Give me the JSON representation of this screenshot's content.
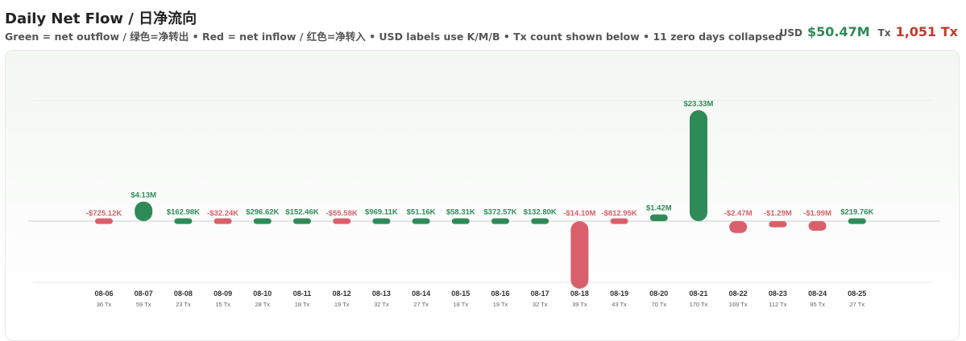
{
  "header": {
    "title": "Daily Net Flow / 日净流向",
    "subtitle": "Green = net outflow / 绿色=净转出 • Red = net inflow / 红色=净转入 • USD labels use K/M/B • Tx count shown below • 11 zero days collapsed",
    "usd_label": "USD",
    "usd_total": "$50.47M",
    "tx_label": "Tx",
    "tx_total": "1,051 Tx"
  },
  "colors": {
    "green": "#2e8b57",
    "red": "#d9606a",
    "gridline": "#e6eae6",
    "zeroline": "#c8d0c8"
  },
  "chart_data": {
    "type": "bar",
    "title": "Daily Net Flow / 日净流向",
    "categories": [
      "08-06",
      "08-07",
      "08-08",
      "08-09",
      "08-10",
      "08-11",
      "08-12",
      "08-13",
      "08-14",
      "08-15",
      "08-16",
      "08-17",
      "08-18",
      "08-19",
      "08-20",
      "08-21",
      "08-22",
      "08-23",
      "08-24",
      "08-25"
    ],
    "values": [
      -725120,
      4130000,
      162980,
      -32240,
      296620,
      152460,
      -55580,
      969110,
      51160,
      58310,
      372570,
      132800,
      -14100000,
      -812950,
      1420000,
      23330000,
      -2470000,
      -1290000,
      -1990000,
      219760
    ],
    "value_labels": [
      "-$725.12K",
      "$4.13M",
      "$162.98K",
      "-$32.24K",
      "$296.62K",
      "$152.46K",
      "-$55.58K",
      "$969.11K",
      "$51.16K",
      "$58.31K",
      "$372.57K",
      "$132.80K",
      "-$14.10M",
      "-$812.95K",
      "$1.42M",
      "$23.33M",
      "-$2.47M",
      "-$1.29M",
      "-$1.99M",
      "$219.76K"
    ],
    "tx_counts": [
      "36 Tx",
      "59 Tx",
      "23 Tx",
      "15 Tx",
      "28 Tx",
      "18 Tx",
      "19 Tx",
      "32 Tx",
      "27 Tx",
      "18 Tx",
      "19 Tx",
      "32 Tx",
      "39 Tx",
      "43 Tx",
      "70 Tx",
      "170 Tx",
      "169 Tx",
      "112 Tx",
      "95 Tx",
      "27 Tx"
    ],
    "ylim": [
      -14100000,
      23330000
    ],
    "grid": true,
    "legend": "none"
  }
}
